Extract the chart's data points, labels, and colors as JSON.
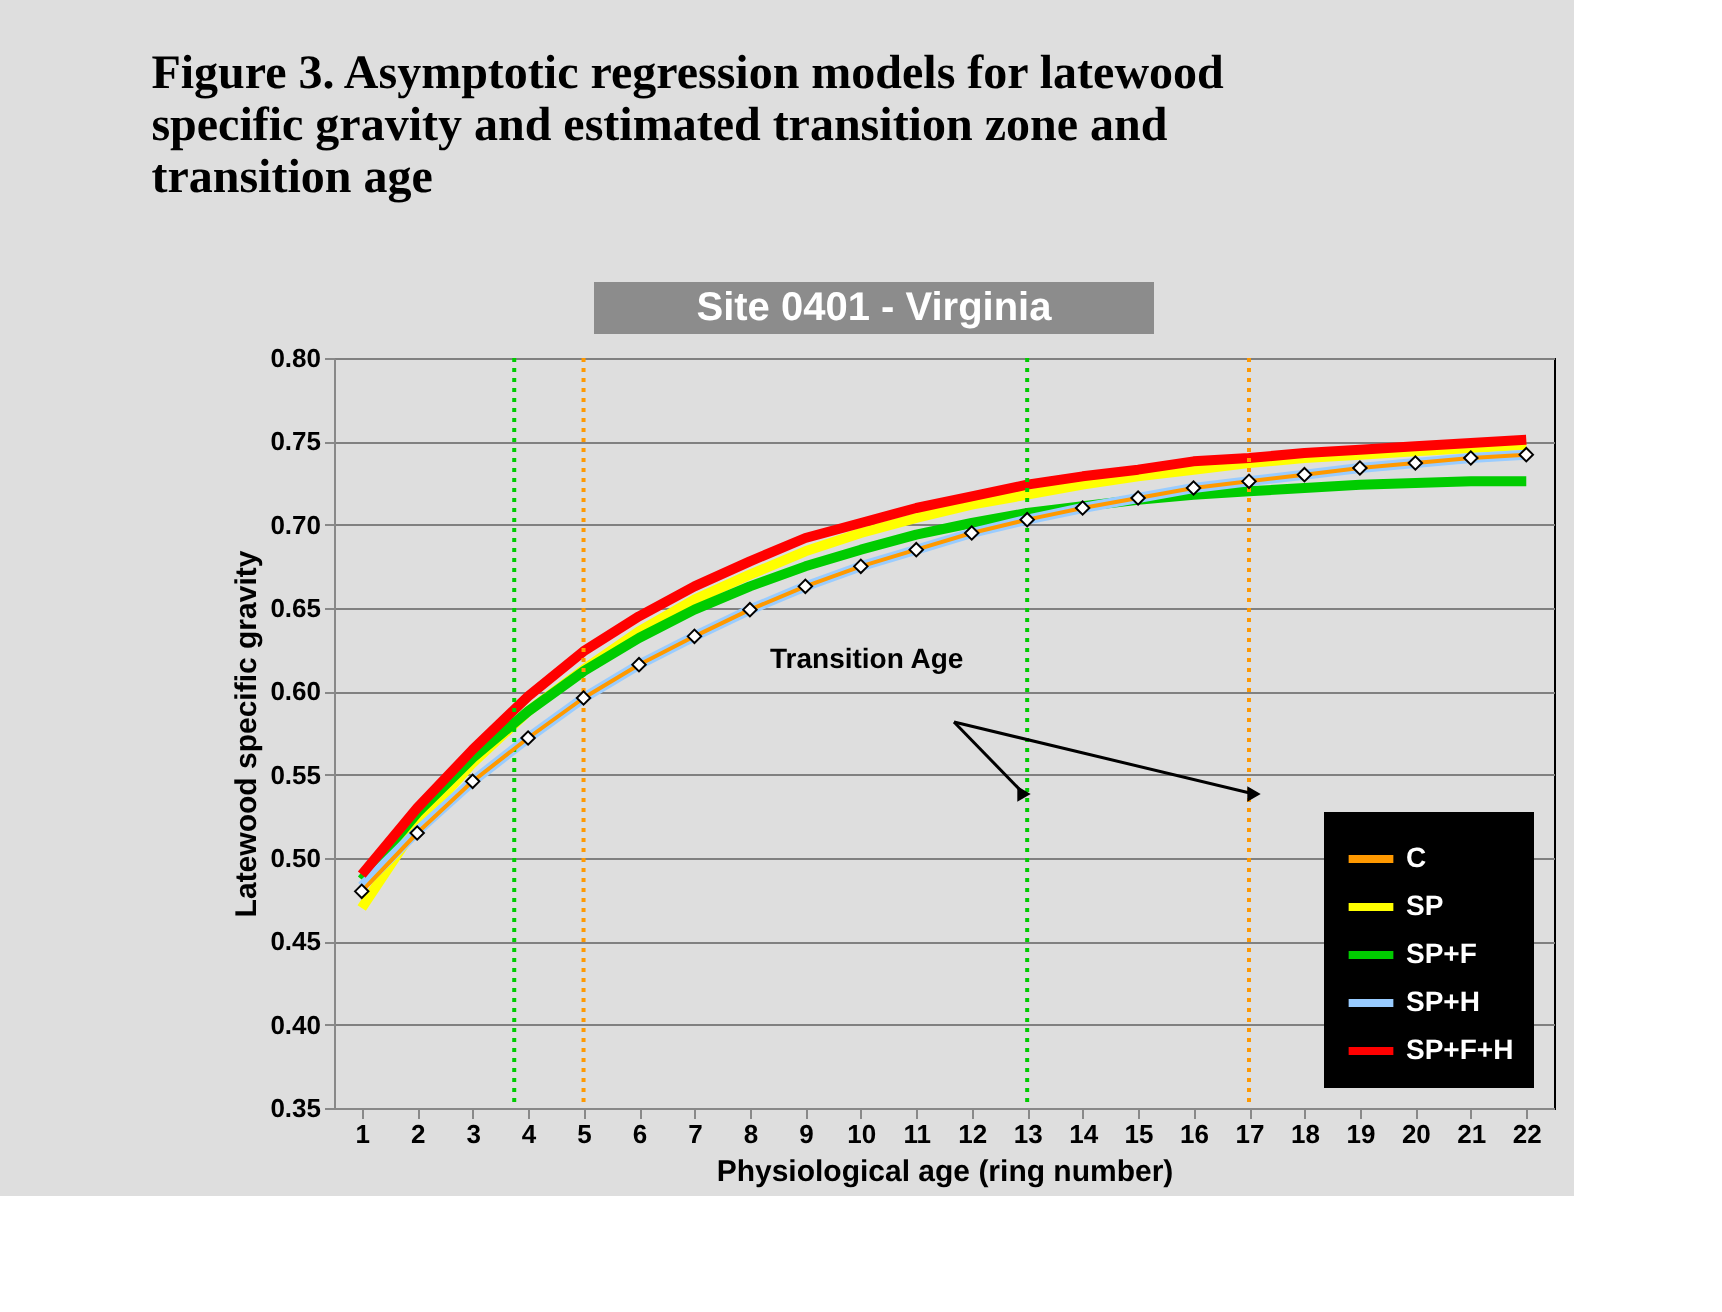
{
  "chart_data": {
    "type": "line",
    "title": "Figure 3.  Asymptotic regression models for latewood specific gravity and estimated transition zone and transition age",
    "subtitle": "Site 0401 - Virginia",
    "xlabel": "Physiological age (ring number)",
    "ylabel": "Latewood specific gravity",
    "x": [
      1,
      2,
      3,
      4,
      5,
      6,
      7,
      8,
      9,
      10,
      11,
      12,
      13,
      14,
      15,
      16,
      17,
      18,
      19,
      20,
      21,
      22
    ],
    "xlim": [
      0.5,
      22.5
    ],
    "xticks": [
      1,
      2,
      3,
      4,
      5,
      6,
      7,
      8,
      9,
      10,
      11,
      12,
      13,
      14,
      15,
      16,
      17,
      18,
      19,
      20,
      21,
      22
    ],
    "ylim": [
      0.35,
      0.8
    ],
    "yticks": [
      {
        "value": 0.35,
        "label": "0.35"
      },
      {
        "value": 0.4,
        "label": "0.40"
      },
      {
        "value": 0.45,
        "label": "0.45"
      },
      {
        "value": 0.5,
        "label": "0.50"
      },
      {
        "value": 0.55,
        "label": "0.55"
      },
      {
        "value": 0.6,
        "label": "0.60"
      },
      {
        "value": 0.65,
        "label": "0.65"
      },
      {
        "value": 0.7,
        "label": "0.70"
      },
      {
        "value": 0.75,
        "label": "0.75"
      },
      {
        "value": 0.8,
        "label": "0.80"
      }
    ],
    "grid": "y",
    "legend": "bottom right",
    "line_style": "solid",
    "series": [
      {
        "name": "C",
        "color": "#ff9900",
        "marker": "diamond",
        "values": [
          0.48,
          0.515,
          0.546,
          0.572,
          0.596,
          0.616,
          0.633,
          0.649,
          0.663,
          0.675,
          0.685,
          0.695,
          0.703,
          0.71,
          0.716,
          0.722,
          0.726,
          0.73,
          0.734,
          0.737,
          0.74,
          0.742
        ]
      },
      {
        "name": "SP",
        "color": "#ffff00",
        "marker": "none",
        "values": [
          0.47,
          0.52,
          0.557,
          0.588,
          0.613,
          0.636,
          0.655,
          0.67,
          0.684,
          0.695,
          0.704,
          0.712,
          0.718,
          0.724,
          0.729,
          0.733,
          0.737,
          0.74,
          0.742,
          0.744,
          0.746,
          0.748
        ]
      },
      {
        "name": "SP+F",
        "color": "#00cc00",
        "marker": "none",
        "values": [
          0.487,
          0.527,
          0.56,
          0.588,
          0.612,
          0.632,
          0.649,
          0.663,
          0.675,
          0.685,
          0.694,
          0.701,
          0.707,
          0.711,
          0.715,
          0.718,
          0.72,
          0.722,
          0.724,
          0.725,
          0.726,
          0.726
        ]
      },
      {
        "name": "SP+H",
        "color": "#99ccff",
        "marker": "none",
        "values": [
          0.483,
          0.516,
          0.546,
          0.572,
          0.596,
          0.616,
          0.633,
          0.649,
          0.663,
          0.675,
          0.685,
          0.695,
          0.703,
          0.71,
          0.716,
          0.722,
          0.726,
          0.73,
          0.734,
          0.737,
          0.74,
          0.742
        ]
      },
      {
        "name": "SP+F+H",
        "color": "#ff0000",
        "marker": "none",
        "values": [
          0.49,
          0.53,
          0.565,
          0.597,
          0.624,
          0.645,
          0.663,
          0.678,
          0.692,
          0.701,
          0.71,
          0.717,
          0.724,
          0.729,
          0.733,
          0.738,
          0.74,
          0.743,
          0.745,
          0.747,
          0.749,
          0.751
        ]
      }
    ],
    "ref_lines": [
      {
        "axis": "x",
        "value": 3.75,
        "color": "#00cc00",
        "line_style": "dotted"
      },
      {
        "axis": "x",
        "value": 5,
        "color": "#ff9900",
        "line_style": "dotted"
      },
      {
        "axis": "x",
        "value": 13,
        "color": "#00cc00",
        "line_style": "dotted"
      },
      {
        "axis": "x",
        "value": 17,
        "color": "#ff9900",
        "line_style": "dotted"
      }
    ],
    "annotations": [
      "Transition Age"
    ]
  }
}
